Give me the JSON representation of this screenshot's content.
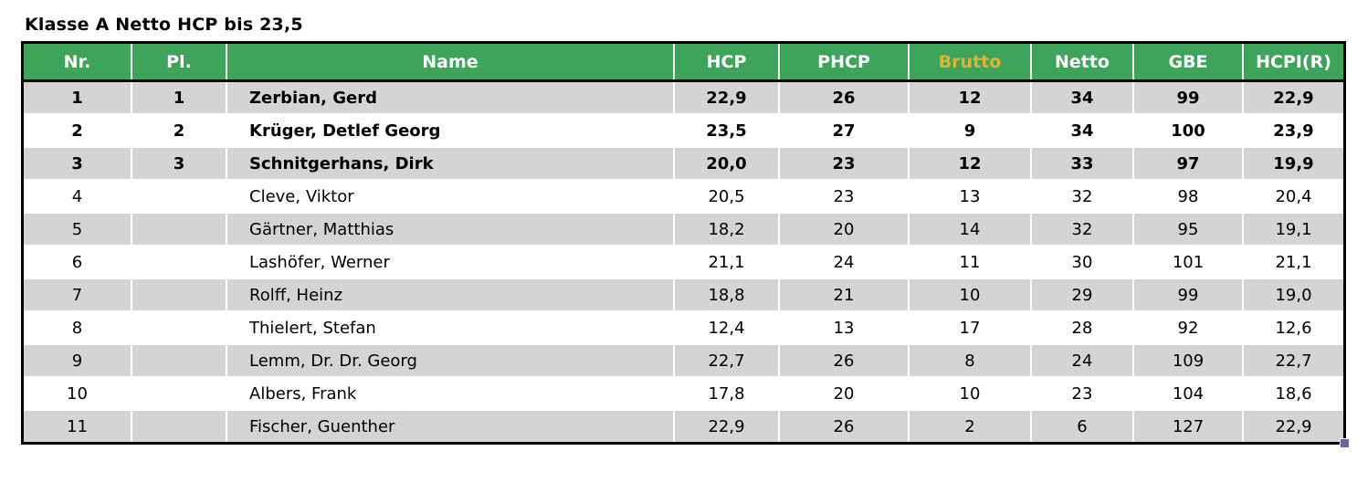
{
  "title": "Klasse A Netto HCP bis 23,5",
  "table": {
    "columns": [
      {
        "key": "nr",
        "label": "Nr."
      },
      {
        "key": "pl",
        "label": "Pl."
      },
      {
        "key": "name",
        "label": "Name"
      },
      {
        "key": "hcp",
        "label": "HCP"
      },
      {
        "key": "phcp",
        "label": "PHCP"
      },
      {
        "key": "brutto",
        "label": "Brutto"
      },
      {
        "key": "netto",
        "label": "Netto"
      },
      {
        "key": "gbe",
        "label": "GBE"
      },
      {
        "key": "hcpi",
        "label": "HCPI(R)"
      }
    ],
    "rows": [
      {
        "nr": "1",
        "pl": "1",
        "name": "Zerbian, Gerd",
        "hcp": "22,9",
        "phcp": "26",
        "brutto": "12",
        "netto": "34",
        "gbe": "99",
        "hcpi": "22,9",
        "bold": true
      },
      {
        "nr": "2",
        "pl": "2",
        "name": "Krüger, Detlef Georg",
        "hcp": "23,5",
        "phcp": "27",
        "brutto": "9",
        "netto": "34",
        "gbe": "100",
        "hcpi": "23,9",
        "bold": true
      },
      {
        "nr": "3",
        "pl": "3",
        "name": "Schnitgerhans, Dirk",
        "hcp": "20,0",
        "phcp": "23",
        "brutto": "12",
        "netto": "33",
        "gbe": "97",
        "hcpi": "19,9",
        "bold": true
      },
      {
        "nr": "4",
        "pl": "",
        "name": "Cleve, Viktor",
        "hcp": "20,5",
        "phcp": "23",
        "brutto": "13",
        "netto": "32",
        "gbe": "98",
        "hcpi": "20,4",
        "bold": false
      },
      {
        "nr": "5",
        "pl": "",
        "name": "Gärtner, Matthias",
        "hcp": "18,2",
        "phcp": "20",
        "brutto": "14",
        "netto": "32",
        "gbe": "95",
        "hcpi": "19,1",
        "bold": false
      },
      {
        "nr": "6",
        "pl": "",
        "name": "Lashöfer, Werner",
        "hcp": "21,1",
        "phcp": "24",
        "brutto": "11",
        "netto": "30",
        "gbe": "101",
        "hcpi": "21,1",
        "bold": false
      },
      {
        "nr": "7",
        "pl": "",
        "name": "Rolff, Heinz",
        "hcp": "18,8",
        "phcp": "21",
        "brutto": "10",
        "netto": "29",
        "gbe": "99",
        "hcpi": "19,0",
        "bold": false
      },
      {
        "nr": "8",
        "pl": "",
        "name": "Thielert, Stefan",
        "hcp": "12,4",
        "phcp": "13",
        "brutto": "17",
        "netto": "28",
        "gbe": "92",
        "hcpi": "12,6",
        "bold": false
      },
      {
        "nr": "9",
        "pl": "",
        "name": "Lemm, Dr. Dr. Georg",
        "hcp": "22,7",
        "phcp": "26",
        "brutto": "8",
        "netto": "24",
        "gbe": "109",
        "hcpi": "22,7",
        "bold": false
      },
      {
        "nr": "10",
        "pl": "",
        "name": "Albers, Frank",
        "hcp": "17,8",
        "phcp": "20",
        "brutto": "10",
        "netto": "23",
        "gbe": "104",
        "hcpi": "18,6",
        "bold": false
      },
      {
        "nr": "11",
        "pl": "",
        "name": "Fischer, Guenther",
        "hcp": "22,9",
        "phcp": "26",
        "brutto": "2",
        "netto": "6",
        "gbe": "127",
        "hcpi": "22,9",
        "bold": false
      }
    ]
  },
  "colors": {
    "header_bg": "#3EA45A",
    "header_text": "#FFFFFF",
    "brutto_header_text": "#DDB431",
    "row_alt_bg": "#D4D4D4",
    "row_bg": "#FFFFFF",
    "border": "#000000",
    "corner_handle": "#6667A3"
  }
}
